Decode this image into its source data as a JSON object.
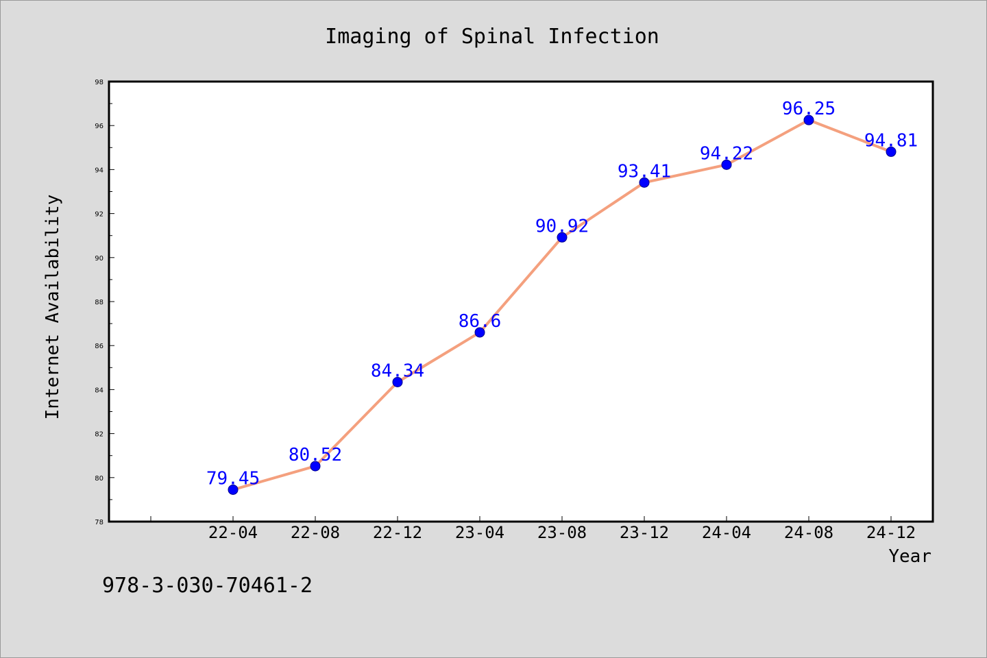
{
  "chart_data": {
    "type": "line",
    "title": "Imaging of Spinal Infection",
    "xlabel": "Year",
    "ylabel": "Internet Availability",
    "categories": [
      "22-04",
      "22-08",
      "22-12",
      "23-04",
      "23-08",
      "23-12",
      "24-04",
      "24-08",
      "24-12"
    ],
    "series": [
      {
        "values": [
          79.45,
          80.52,
          84.34,
          86.6,
          90.92,
          93.41,
          94.22,
          96.25,
          94.81
        ],
        "data_labels": [
          "79.45",
          "80.52",
          "84.34",
          "86.6",
          "90.92",
          "93.41",
          "94.22",
          "96.25",
          "94.81"
        ]
      }
    ],
    "ylim": [
      78,
      98
    ],
    "yticks": [
      78,
      80,
      82,
      84,
      86,
      88,
      90,
      92,
      94,
      96,
      98
    ],
    "grid": false,
    "line_color": "#f4a07e",
    "marker_color": "#0000ff",
    "label_color": "#0000ff"
  },
  "footer": {
    "isbn": "978-3-030-70461-2"
  }
}
